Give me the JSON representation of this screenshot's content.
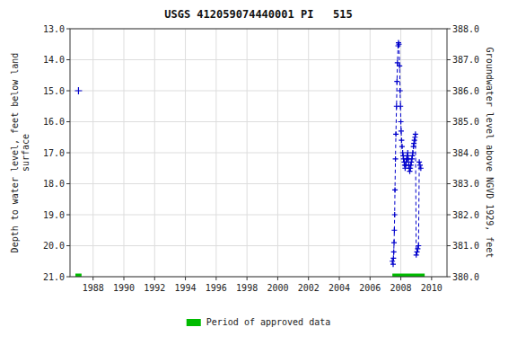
{
  "chart_data": {
    "type": "line",
    "title": "USGS 412059074440001 PI   515",
    "y_label": "Depth to water level, feet below land\nsurface",
    "y2_label": "Groundwater level above NGVD 1929, feet",
    "xlim": [
      1986.5,
      2011.0
    ],
    "ylim": [
      21.0,
      13.0
    ],
    "y2lim": [
      380.0,
      388.0
    ],
    "xticks": [
      1988,
      1990,
      1992,
      1994,
      1996,
      1998,
      2000,
      2002,
      2004,
      2006,
      2008,
      2010
    ],
    "yticks": [
      {
        "value": 13.0,
        "label": "13.0"
      },
      {
        "value": 14.0,
        "label": "14.0"
      },
      {
        "value": 15.0,
        "label": "15.0"
      },
      {
        "value": 16.0,
        "label": "16.0"
      },
      {
        "value": 17.0,
        "label": "17.0"
      },
      {
        "value": 18.0,
        "label": "18.0"
      },
      {
        "value": 19.0,
        "label": "19.0"
      },
      {
        "value": 20.0,
        "label": "20.0"
      },
      {
        "value": 21.0,
        "label": "21.0"
      }
    ],
    "y2ticks": [
      {
        "value": 380.0,
        "label": "380.0"
      },
      {
        "value": 381.0,
        "label": "381.0"
      },
      {
        "value": 382.0,
        "label": "382.0"
      },
      {
        "value": 383.0,
        "label": "383.0"
      },
      {
        "value": 384.0,
        "label": "384.0"
      },
      {
        "value": 385.0,
        "label": "385.0"
      },
      {
        "value": 386.0,
        "label": "386.0"
      },
      {
        "value": 387.0,
        "label": "387.0"
      },
      {
        "value": 388.0,
        "label": "388.0"
      }
    ],
    "grid": true,
    "series": [
      {
        "type": "scatter",
        "marker": "plus",
        "color": "#0000cc",
        "x": [
          1987.05
        ],
        "values": [
          15.0
        ]
      },
      {
        "type": "line",
        "marker": "plus",
        "line_style": "dashed",
        "color": "#0000cc",
        "x": [
          2007.45,
          2007.5,
          2007.52,
          2007.54,
          2007.56,
          2007.58,
          2007.6,
          2007.62,
          2007.65,
          2007.68,
          2007.72,
          2007.75,
          2007.78,
          2007.82,
          2007.85,
          2007.88,
          2007.92,
          2007.95,
          2007.98,
          2008.0,
          2008.02,
          2008.05,
          2008.08,
          2008.12,
          2008.15,
          2008.18,
          2008.22,
          2008.25,
          2008.28,
          2008.32,
          2008.35,
          2008.38,
          2008.42,
          2008.45,
          2008.48,
          2008.52,
          2008.55,
          2008.58,
          2008.62,
          2008.65,
          2008.68,
          2008.72,
          2008.75,
          2008.78,
          2008.82,
          2008.85,
          2008.88,
          2008.92,
          2008.95,
          2009.0,
          2009.05,
          2009.1,
          2009.15,
          2009.2,
          2009.25,
          2009.3
        ],
        "values": [
          20.5,
          20.6,
          20.4,
          20.2,
          19.9,
          19.5,
          19.0,
          18.2,
          17.2,
          16.4,
          15.5,
          14.7,
          14.1,
          13.55,
          13.45,
          13.5,
          14.2,
          15.0,
          15.5,
          16.0,
          16.3,
          16.6,
          16.8,
          17.0,
          17.1,
          17.2,
          17.3,
          17.4,
          17.5,
          17.4,
          17.3,
          17.2,
          17.1,
          17.0,
          17.2,
          17.4,
          17.5,
          17.6,
          17.5,
          17.4,
          17.3,
          17.2,
          17.1,
          17.0,
          16.8,
          16.7,
          16.6,
          16.5,
          16.4,
          20.3,
          20.2,
          20.1,
          20.0,
          17.3,
          17.4,
          17.5
        ]
      },
      {
        "name": "Period of approved data",
        "type": "interval",
        "color": "#00bb00",
        "x_start": [
          2007.45,
          1986.85
        ],
        "x_end": [
          2009.55,
          1987.25
        ],
        "values": [
          21.0,
          21.0
        ]
      }
    ]
  }
}
